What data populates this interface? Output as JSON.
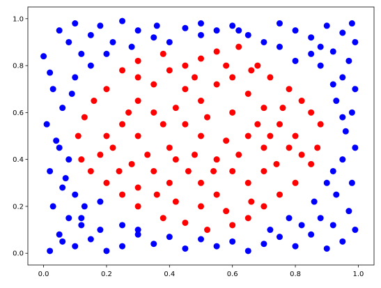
{
  "chart_data": {
    "type": "scatter",
    "xlim": [
      -0.05,
      1.05
    ],
    "ylim": [
      -0.05,
      1.05
    ],
    "xticks": [
      {
        "value": 0,
        "label": "0.0"
      },
      {
        "value": 0.2,
        "label": "0.2"
      },
      {
        "value": 0.4,
        "label": "0.4"
      },
      {
        "value": 0.6,
        "label": "0.6"
      },
      {
        "value": 0.8,
        "label": "0.8"
      },
      {
        "value": 1,
        "label": "1.0"
      }
    ],
    "yticks": [
      {
        "value": 0,
        "label": "0.0"
      },
      {
        "value": 0.2,
        "label": "0.2"
      },
      {
        "value": 0.4,
        "label": "0.4"
      },
      {
        "value": 0.6,
        "label": "0.6"
      },
      {
        "value": 0.8,
        "label": "0.8"
      },
      {
        "value": 1,
        "label": "1.0"
      }
    ],
    "series": [
      {
        "color": "#0000ff",
        "x": [
          0.0,
          0.02,
          0.05,
          0.08,
          0.1,
          0.12,
          0.15,
          0.18,
          0.22,
          0.25,
          0.3,
          0.35,
          0.4,
          0.45,
          0.5,
          0.55,
          0.6,
          0.65,
          0.7,
          0.75,
          0.8,
          0.85,
          0.9,
          0.95,
          0.99,
          0.97,
          0.92,
          0.88,
          0.95,
          0.99,
          0.93,
          0.98,
          0.96,
          0.99,
          0.95,
          0.98,
          0.93,
          0.97,
          0.99,
          0.95,
          0.9,
          0.85,
          0.88,
          0.82,
          0.8,
          0.75,
          0.7,
          0.65,
          0.6,
          0.55,
          0.5,
          0.45,
          0.4,
          0.35,
          0.3,
          0.25,
          0.2,
          0.15,
          0.1,
          0.05,
          0.02,
          0.08,
          0.12,
          0.18,
          0.25,
          0.03,
          0.06,
          0.02,
          0.08,
          0.04,
          0.01,
          0.06,
          0.03,
          0.09,
          0.1,
          0.05,
          0.07,
          0.13,
          0.18,
          0.1,
          0.92,
          0.9,
          0.86,
          0.92,
          0.78,
          0.72,
          0.3,
          0.15,
          0.2,
          0.28,
          0.75,
          0.8,
          0.85,
          0.92,
          0.95,
          0.12,
          0.88,
          0.06,
          0.98,
          0.5,
          0.62,
          0.36
        ],
        "values": [
          0.84,
          0.77,
          0.95,
          0.9,
          0.98,
          0.85,
          0.93,
          0.97,
          0.9,
          0.99,
          0.95,
          0.92,
          0.9,
          0.96,
          0.98,
          0.95,
          0.97,
          0.93,
          0.9,
          0.98,
          0.95,
          0.92,
          0.97,
          0.94,
          0.9,
          0.82,
          0.86,
          0.8,
          0.75,
          0.7,
          0.65,
          0.6,
          0.52,
          0.45,
          0.4,
          0.3,
          0.25,
          0.18,
          0.1,
          0.05,
          0.02,
          0.08,
          0.15,
          0.12,
          0.03,
          0.07,
          0.04,
          0.01,
          0.05,
          0.03,
          0.06,
          0.02,
          0.07,
          0.04,
          0.08,
          0.03,
          0.01,
          0.06,
          0.03,
          0.08,
          0.01,
          0.15,
          0.12,
          0.1,
          0.12,
          0.2,
          0.28,
          0.35,
          0.4,
          0.48,
          0.55,
          0.62,
          0.7,
          0.68,
          0.75,
          0.45,
          0.32,
          0.2,
          0.22,
          0.25,
          0.35,
          0.3,
          0.22,
          0.12,
          0.15,
          0.1,
          0.1,
          0.8,
          0.85,
          0.88,
          0.88,
          0.82,
          0.85,
          0.72,
          0.58,
          0.15,
          0.88,
          0.05,
          0.98,
          0.93,
          0.95,
          0.97
        ]
      },
      {
        "color": "#ff0000",
        "x": [
          0.2,
          0.25,
          0.3,
          0.38,
          0.45,
          0.5,
          0.55,
          0.62,
          0.68,
          0.72,
          0.78,
          0.82,
          0.85,
          0.88,
          0.87,
          0.85,
          0.8,
          0.75,
          0.7,
          0.65,
          0.6,
          0.52,
          0.45,
          0.38,
          0.3,
          0.25,
          0.2,
          0.15,
          0.12,
          0.11,
          0.13,
          0.16,
          0.3,
          0.35,
          0.4,
          0.45,
          0.5,
          0.55,
          0.6,
          0.65,
          0.7,
          0.75,
          0.35,
          0.4,
          0.5,
          0.55,
          0.6,
          0.65,
          0.7,
          0.45,
          0.5,
          0.55,
          0.6,
          0.65,
          0.7,
          0.3,
          0.25,
          0.22,
          0.28,
          0.33,
          0.38,
          0.42,
          0.48,
          0.52,
          0.58,
          0.62,
          0.68,
          0.72,
          0.78,
          0.8,
          0.82,
          0.76,
          0.3,
          0.35,
          0.4,
          0.48,
          0.58,
          0.66,
          0.2,
          0.18,
          0.24,
          0.3,
          0.42,
          0.5,
          0.58,
          0.66,
          0.74,
          0.36,
          0.46,
          0.54,
          0.27,
          0.42
        ],
        "values": [
          0.7,
          0.78,
          0.82,
          0.85,
          0.8,
          0.83,
          0.86,
          0.88,
          0.8,
          0.75,
          0.7,
          0.65,
          0.6,
          0.55,
          0.45,
          0.38,
          0.3,
          0.25,
          0.2,
          0.15,
          0.12,
          0.1,
          0.13,
          0.15,
          0.2,
          0.25,
          0.3,
          0.35,
          0.4,
          0.5,
          0.58,
          0.65,
          0.5,
          0.6,
          0.45,
          0.55,
          0.5,
          0.4,
          0.6,
          0.5,
          0.45,
          0.55,
          0.35,
          0.3,
          0.3,
          0.25,
          0.35,
          0.3,
          0.35,
          0.7,
          0.65,
          0.72,
          0.75,
          0.68,
          0.62,
          0.65,
          0.55,
          0.45,
          0.38,
          0.42,
          0.55,
          0.62,
          0.42,
          0.58,
          0.48,
          0.42,
          0.55,
          0.5,
          0.45,
          0.5,
          0.42,
          0.62,
          0.75,
          0.72,
          0.78,
          0.75,
          0.8,
          0.78,
          0.5,
          0.42,
          0.35,
          0.28,
          0.22,
          0.2,
          0.18,
          0.22,
          0.38,
          0.25,
          0.35,
          0.35,
          0.6,
          0.4
        ]
      }
    ]
  }
}
